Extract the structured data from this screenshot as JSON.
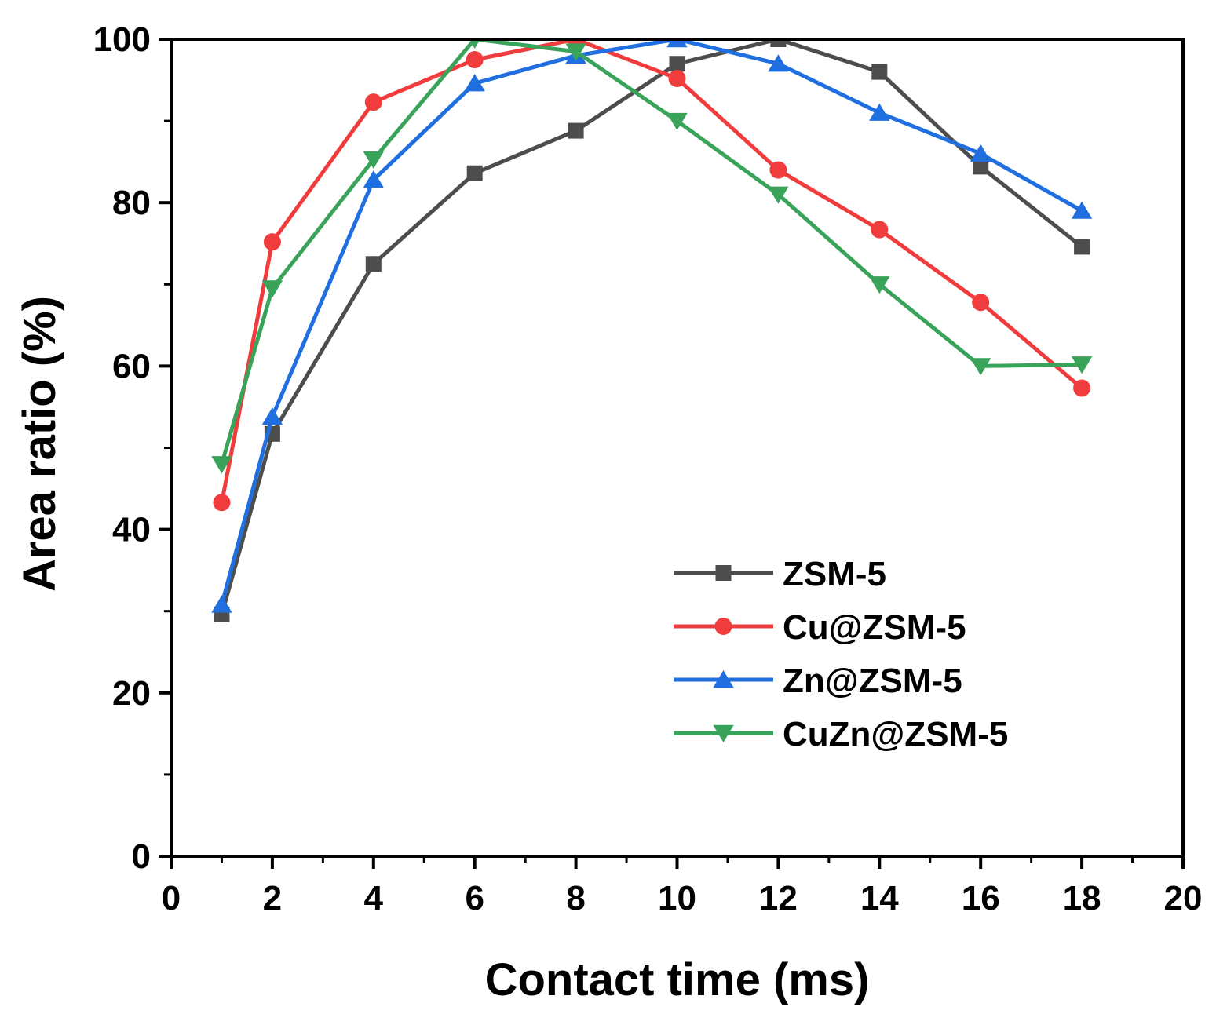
{
  "chart_data": {
    "type": "line",
    "title": "",
    "xlabel": "Contact time (ms)",
    "ylabel": "Area ratio (%)",
    "xlim": [
      0,
      20
    ],
    "ylim": [
      0,
      100
    ],
    "x_major_ticks": [
      0,
      2,
      4,
      6,
      8,
      10,
      12,
      14,
      16,
      18,
      20
    ],
    "x_tick_labels": [
      "0",
      "2",
      "4",
      "6",
      "8",
      "10",
      "12",
      "14",
      "16",
      "18",
      "20"
    ],
    "y_major_ticks": [
      0,
      20,
      40,
      60,
      80,
      100
    ],
    "y_tick_labels": [
      "0",
      "20",
      "40",
      "60",
      "80",
      "100"
    ],
    "x_minor_step": 1,
    "y_minor_step": 10,
    "grid": false,
    "legend_position": "center-right",
    "x": [
      1,
      2,
      4,
      6,
      8,
      10,
      12,
      14,
      16,
      18
    ],
    "series": [
      {
        "name": "ZSM-5",
        "color": "#4d4d4d",
        "marker": "square",
        "values": [
          29.6,
          51.7,
          72.5,
          83.6,
          88.8,
          97.0,
          100.0,
          96.0,
          84.4,
          74.6
        ]
      },
      {
        "name": "Cu@ZSM-5",
        "color": "#f03c3c",
        "marker": "circle",
        "values": [
          43.3,
          75.2,
          92.3,
          97.5,
          100.0,
          95.2,
          84.0,
          76.7,
          67.8,
          57.3
        ]
      },
      {
        "name": "Zn@ZSM-5",
        "color": "#1f6fe0",
        "marker": "triangle-up",
        "values": [
          30.8,
          53.8,
          82.8,
          94.6,
          98.0,
          100.0,
          97.0,
          91.0,
          86.0,
          79.0
        ]
      },
      {
        "name": "CuZn@ZSM-5",
        "color": "#3aa35a",
        "marker": "triangle-down",
        "values": [
          48.0,
          69.5,
          85.3,
          100.0,
          98.5,
          90.0,
          81.0,
          70.0,
          60.0,
          60.2
        ]
      }
    ]
  }
}
